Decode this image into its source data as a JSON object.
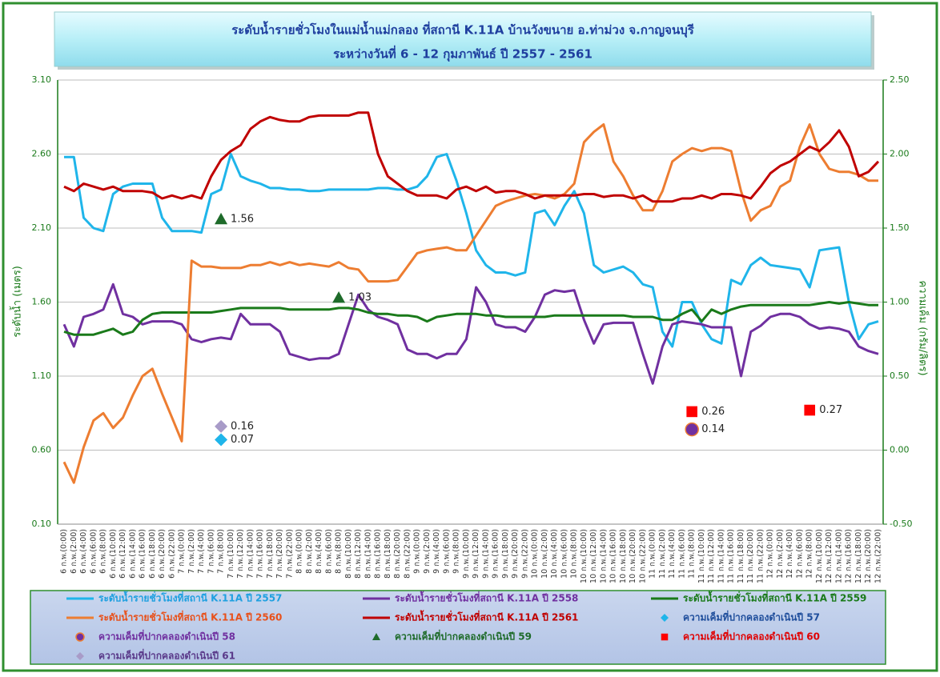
{
  "chart_data": {
    "type": "line",
    "title": "ระดับน้ำรายชั่วโมงในแม่น้ำแม่กลอง ที่สถานี K.11A บ้านวังขนาย อ.ท่าม่วง จ.กาญจนบุรี",
    "subtitle": "ระหว่างวันที่ 6 - 12 กุมภาพันธ์ ปี 2557 - 2561",
    "y_label": "ระดับน้ำ (เมตร)",
    "y2_label": "ความเค็ม (กรัม/ลิตร)",
    "grid": true,
    "ylim": [
      0.1,
      3.1
    ],
    "yticks": [
      {
        "value": 0.1,
        "label": "0.10"
      },
      {
        "value": 0.6,
        "label": "0.60"
      },
      {
        "value": 1.1,
        "label": "1.10"
      },
      {
        "value": 1.6,
        "label": "1.60"
      },
      {
        "value": 2.1,
        "label": "2.10"
      },
      {
        "value": 2.6,
        "label": "2.60"
      },
      {
        "value": 3.1,
        "label": "3.10"
      }
    ],
    "y2lim": [
      -0.5,
      2.5
    ],
    "y2ticks": [
      {
        "value": -0.5,
        "label": "-0.50"
      },
      {
        "value": 0,
        "label": "0.00"
      },
      {
        "value": 0.5,
        "label": "0.50"
      },
      {
        "value": 1,
        "label": "1.00"
      },
      {
        "value": 1.5,
        "label": "1.50"
      },
      {
        "value": 2,
        "label": "2.00"
      },
      {
        "value": 2.5,
        "label": "2.50"
      }
    ],
    "categories": [
      "6 ก.พ.(0:00)",
      "6 ก.พ.(2:00)",
      "6 ก.พ.(4:00)",
      "6 ก.พ.(6:00)",
      "6 ก.พ.(8:00)",
      "6 ก.พ.(10:00)",
      "6 ก.พ.(12:00)",
      "6 ก.พ.(14:00)",
      "6 ก.พ.(16:00)",
      "6 ก.พ.(18:00)",
      "6 ก.พ.(20:00)",
      "6 ก.พ.(22:00)",
      "7 ก.พ.(0:00)",
      "7 ก.พ.(2:00)",
      "7 ก.พ.(4:00)",
      "7 ก.พ.(6:00)",
      "7 ก.พ.(8:00)",
      "7 ก.พ.(10:00)",
      "7 ก.พ.(12:00)",
      "7 ก.พ.(14:00)",
      "7 ก.พ.(16:00)",
      "7 ก.พ.(18:00)",
      "7 ก.พ.(20:00)",
      "7 ก.พ.(22:00)",
      "8 ก.พ.(0:00)",
      "8 ก.พ.(2:00)",
      "8 ก.พ.(4:00)",
      "8 ก.พ.(6:00)",
      "8 ก.พ.(8:00)",
      "8 ก.พ.(10:00)",
      "8 ก.พ.(12:00)",
      "8 ก.พ.(14:00)",
      "8 ก.พ.(16:00)",
      "8 ก.พ.(18:00)",
      "8 ก.พ.(20:00)",
      "8 ก.พ.(22:00)",
      "9 ก.พ.(0:00)",
      "9 ก.พ.(2:00)",
      "9 ก.พ.(4:00)",
      "9 ก.พ.(6:00)",
      "9 ก.พ.(8:00)",
      "9 ก.พ.(10:00)",
      "9 ก.พ.(12:00)",
      "9 ก.พ.(14:00)",
      "9 ก.พ.(16:00)",
      "9 ก.พ.(18:00)",
      "9 ก.พ.(20:00)",
      "9 ก.พ.(22:00)",
      "10 ก.พ.(0:00)",
      "10 ก.พ.(2:00)",
      "10 ก.พ.(4:00)",
      "10 ก.พ.(6:00)",
      "10 ก.พ.(8:00)",
      "10 ก.พ.(10:00)",
      "10 ก.พ.(12:00)",
      "10 ก.พ.(14:00)",
      "10 ก.พ.(16:00)",
      "10 ก.พ.(18:00)",
      "10 ก.พ.(20:00)",
      "10 ก.พ.(22:00)",
      "11 ก.พ.(0:00)",
      "11 ก.พ.(2:00)",
      "11 ก.พ.(4:00)",
      "11 ก.พ.(6:00)",
      "11 ก.พ.(8:00)",
      "11 ก.พ.(10:00)",
      "11 ก.พ.(12:00)",
      "11 ก.พ.(14:00)",
      "11 ก.พ.(16:00)",
      "11 ก.พ.(18:00)",
      "11 ก.พ.(20:00)",
      "11 ก.พ.(22:00)",
      "12 ก.พ.(0:00)",
      "12 ก.พ.(2:00)",
      "12 ก.พ.(4:00)",
      "12 ก.พ.(6:00)",
      "12 ก.พ.(8:00)",
      "12 ก.พ.(10:00)",
      "12 ก.พ.(12:00)",
      "12 ก.พ.(14:00)",
      "12 ก.พ.(16:00)",
      "12 ก.พ.(18:00)",
      "12 ก.พ.(20:00)",
      "12 ก.พ.(22:00)"
    ],
    "series": [
      {
        "name": "ระดับน้ำรายชั่วโมงที่สถานี K.11A ปี 2557",
        "type": "line",
        "color": "#1fb5ea",
        "label_color": "#1fa0e0",
        "values": [
          2.58,
          2.58,
          2.17,
          2.1,
          2.08,
          2.33,
          2.38,
          2.4,
          2.4,
          2.4,
          2.17,
          2.08,
          2.08,
          2.08,
          2.07,
          2.33,
          2.36,
          2.6,
          2.45,
          2.42,
          2.4,
          2.37,
          2.37,
          2.36,
          2.36,
          2.35,
          2.35,
          2.36,
          2.36,
          2.36,
          2.36,
          2.36,
          2.37,
          2.37,
          2.36,
          2.36,
          2.38,
          2.45,
          2.58,
          2.6,
          2.42,
          2.2,
          1.95,
          1.85,
          1.8,
          1.8,
          1.78,
          1.8,
          2.2,
          2.22,
          2.12,
          2.25,
          2.35,
          2.2,
          1.85,
          1.8,
          1.82,
          1.84,
          1.8,
          1.72,
          1.7,
          1.4,
          1.3,
          1.6,
          1.6,
          1.45,
          1.35,
          1.32,
          1.75,
          1.72,
          1.85,
          1.9,
          1.85,
          1.84,
          1.83,
          1.82,
          1.7,
          1.95,
          1.96,
          1.97,
          1.6,
          1.35,
          1.45,
          1.47
        ]
      },
      {
        "name": "ระดับน้ำรายชั่วโมงที่สถานี K.11A ปี 2558",
        "type": "line",
        "color": "#7030a0",
        "label_color": "#7030a0",
        "values": [
          1.45,
          1.3,
          1.5,
          1.52,
          1.55,
          1.72,
          1.52,
          1.5,
          1.45,
          1.47,
          1.47,
          1.47,
          1.45,
          1.35,
          1.33,
          1.35,
          1.36,
          1.35,
          1.52,
          1.45,
          1.45,
          1.45,
          1.4,
          1.25,
          1.23,
          1.21,
          1.22,
          1.22,
          1.25,
          1.45,
          1.65,
          1.55,
          1.5,
          1.48,
          1.45,
          1.28,
          1.25,
          1.25,
          1.22,
          1.25,
          1.25,
          1.35,
          1.7,
          1.6,
          1.45,
          1.43,
          1.43,
          1.4,
          1.5,
          1.65,
          1.68,
          1.67,
          1.68,
          1.48,
          1.32,
          1.45,
          1.46,
          1.46,
          1.46,
          1.25,
          1.05,
          1.3,
          1.45,
          1.47,
          1.46,
          1.45,
          1.43,
          1.43,
          1.43,
          1.1,
          1.4,
          1.44,
          1.5,
          1.52,
          1.52,
          1.5,
          1.45,
          1.42,
          1.43,
          1.42,
          1.4,
          1.3,
          1.27,
          1.25
        ]
      },
      {
        "name": "ระดับน้ำรายชั่วโมงที่สถานี K.11A ปี 2559",
        "type": "line",
        "color": "#1a7a1a",
        "label_color": "#1a7a1a",
        "values": [
          1.4,
          1.38,
          1.38,
          1.38,
          1.4,
          1.42,
          1.38,
          1.4,
          1.48,
          1.52,
          1.53,
          1.53,
          1.53,
          1.53,
          1.53,
          1.53,
          1.54,
          1.55,
          1.56,
          1.56,
          1.56,
          1.56,
          1.56,
          1.55,
          1.55,
          1.55,
          1.55,
          1.55,
          1.56,
          1.56,
          1.55,
          1.53,
          1.52,
          1.52,
          1.51,
          1.51,
          1.5,
          1.47,
          1.5,
          1.51,
          1.52,
          1.52,
          1.52,
          1.51,
          1.51,
          1.5,
          1.5,
          1.5,
          1.5,
          1.5,
          1.51,
          1.51,
          1.51,
          1.51,
          1.51,
          1.51,
          1.51,
          1.51,
          1.5,
          1.5,
          1.5,
          1.48,
          1.48,
          1.52,
          1.55,
          1.47,
          1.55,
          1.52,
          1.55,
          1.57,
          1.58,
          1.58,
          1.58,
          1.58,
          1.58,
          1.58,
          1.58,
          1.59,
          1.6,
          1.59,
          1.6,
          1.59,
          1.58,
          1.58
        ]
      },
      {
        "name": "ระดับน้ำรายชั่วโมงที่สถานี K.11A ปี 2560",
        "type": "line",
        "color": "#ed7d31",
        "label_color": "#e8501a",
        "values": [
          0.52,
          0.38,
          0.62,
          0.8,
          0.85,
          0.75,
          0.82,
          0.97,
          1.1,
          1.15,
          0.98,
          0.82,
          0.66,
          1.88,
          1.84,
          1.84,
          1.83,
          1.83,
          1.83,
          1.85,
          1.85,
          1.87,
          1.85,
          1.87,
          1.85,
          1.86,
          1.85,
          1.84,
          1.87,
          1.83,
          1.82,
          1.74,
          1.74,
          1.74,
          1.75,
          1.84,
          1.93,
          1.95,
          1.96,
          1.97,
          1.95,
          1.95,
          2.05,
          2.15,
          2.25,
          2.28,
          2.3,
          2.32,
          2.33,
          2.32,
          2.3,
          2.33,
          2.4,
          2.68,
          2.75,
          2.8,
          2.55,
          2.45,
          2.32,
          2.22,
          2.22,
          2.35,
          2.55,
          2.6,
          2.64,
          2.62,
          2.64,
          2.64,
          2.62,
          2.35,
          2.15,
          2.22,
          2.25,
          2.38,
          2.42,
          2.65,
          2.8,
          2.6,
          2.5,
          2.48,
          2.48,
          2.46,
          2.42,
          2.42
        ]
      },
      {
        "name": "ระดับน้ำรายชั่วโมงที่สถานี K.11A ปี 2561",
        "type": "line",
        "color": "#c00000",
        "label_color": "#c00000",
        "values": [
          2.38,
          2.35,
          2.4,
          2.38,
          2.36,
          2.38,
          2.35,
          2.35,
          2.35,
          2.34,
          2.3,
          2.32,
          2.3,
          2.32,
          2.3,
          2.45,
          2.56,
          2.62,
          2.66,
          2.77,
          2.82,
          2.85,
          2.83,
          2.82,
          2.82,
          2.85,
          2.86,
          2.86,
          2.86,
          2.86,
          2.88,
          2.88,
          2.6,
          2.45,
          2.4,
          2.35,
          2.32,
          2.32,
          2.32,
          2.3,
          2.36,
          2.38,
          2.35,
          2.38,
          2.34,
          2.35,
          2.35,
          2.33,
          2.3,
          2.32,
          2.32,
          2.32,
          2.32,
          2.33,
          2.33,
          2.31,
          2.32,
          2.32,
          2.3,
          2.32,
          2.28,
          2.28,
          2.28,
          2.3,
          2.3,
          2.32,
          2.3,
          2.33,
          2.33,
          2.32,
          2.3,
          2.38,
          2.47,
          2.52,
          2.55,
          2.6,
          2.65,
          2.62,
          2.68,
          2.76,
          2.65,
          2.45,
          2.48,
          2.55
        ]
      },
      {
        "name": "ความเค็มที่ปากคลองดำเนินปี 57",
        "type": "scatter",
        "marker": "diamond",
        "axis": "y2",
        "color": "#1fb5ea",
        "label_color": "#1f4e9c",
        "x": [
          "7 ก.พ.(8:00)"
        ],
        "values": [
          0.07
        ]
      },
      {
        "name": "ความเค็มที่ปากคลองดำเนินปี 58",
        "type": "scatter",
        "marker": "circle",
        "axis": "y2",
        "color": "#7030a0",
        "label_color": "#7030a0",
        "x": [
          "11 ก.พ.(8:00)"
        ],
        "values": [
          0.14
        ]
      },
      {
        "name": "ความเค็มที่ปากคลองดำเนินปี 59",
        "type": "scatter",
        "marker": "triangle",
        "axis": "y2",
        "color": "#1e6b2a",
        "label_color": "#1e6b2a",
        "x": [
          "7 ก.พ.(8:00)",
          "8 ก.พ.(8:00)"
        ],
        "values": [
          1.56,
          1.03
        ]
      },
      {
        "name": "ความเค็มที่ปากคลองดำเนินปี 60",
        "type": "scatter",
        "marker": "square",
        "axis": "y2",
        "color": "#ff0000",
        "label_color": "#e00000",
        "x": [
          "11 ก.พ.(8:00)",
          "12 ก.พ.(8:00)"
        ],
        "values": [
          0.26,
          0.27
        ]
      },
      {
        "name": "ความเค็มที่ปากคลองดำเนินปี 61",
        "type": "scatter",
        "marker": "diamond",
        "axis": "y2",
        "color": "#a89bc8",
        "label_color": "#5a3a8a",
        "x": [
          "7 ก.พ.(8:00)"
        ],
        "values": [
          0.16
        ]
      }
    ]
  }
}
